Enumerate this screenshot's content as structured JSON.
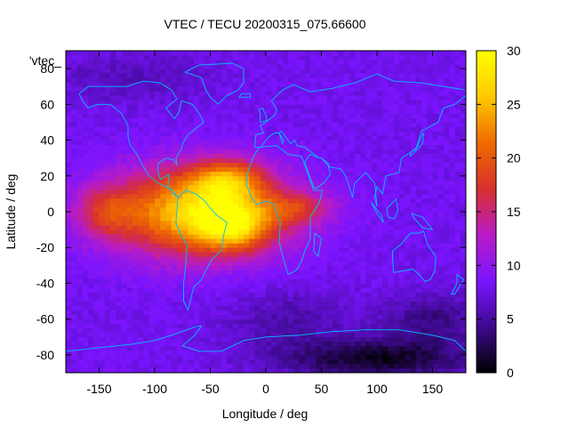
{
  "chart_data": {
    "type": "heatmap",
    "title": "VTEC / TECU 20200315_075.66600",
    "xlabel": "Longitude / deg",
    "ylabel": "Latitude / deg",
    "xlim": [
      -180,
      180
    ],
    "ylim": [
      -90,
      90
    ],
    "x_ticks": [
      -150,
      -100,
      -50,
      0,
      50,
      100,
      150
    ],
    "y_ticks": [
      -80,
      -60,
      -40,
      -20,
      0,
      20,
      40,
      60,
      80
    ],
    "colorbar": {
      "min": 0,
      "max": 30,
      "ticks": [
        0,
        5,
        10,
        15,
        20,
        25,
        30
      ],
      "palette": [
        "#000000",
        "#3c0a8c",
        "#7a14ff",
        "#b81cc6",
        "#d8302e",
        "#ee6a00",
        "#ffc800",
        "#ffff00"
      ]
    },
    "legend_key": "'vtec_",
    "grid_step_deg": 5,
    "background_tec": 8,
    "features": [
      {
        "name": "main equatorial anomaly",
        "lon": -60,
        "lat": 0,
        "sigma_lon": 55,
        "sigma_lat": 17,
        "peak": 19
      },
      {
        "name": "crest north",
        "lon": -35,
        "lat": 18,
        "sigma_lon": 22,
        "sigma_lat": 8,
        "peak": 10
      },
      {
        "name": "crest south",
        "lon": -30,
        "lat": -8,
        "sigma_lon": 22,
        "sigma_lat": 9,
        "peak": 10
      },
      {
        "name": "east pacific lobe",
        "lon": -145,
        "lat": 0,
        "sigma_lon": 18,
        "sigma_lat": 10,
        "peak": 6
      },
      {
        "name": "atlantic-africa tail",
        "lon": 30,
        "lat": 2,
        "sigma_lon": 22,
        "sigma_lat": 6,
        "peak": 6
      },
      {
        "name": "antarctic depletion",
        "lon": 100,
        "lat": -82,
        "sigma_lon": 60,
        "sigma_lat": 8,
        "peak": -7
      },
      {
        "name": "south indian depletion",
        "lon": 150,
        "lat": -60,
        "sigma_lon": 30,
        "sigma_lat": 10,
        "peak": -4
      },
      {
        "name": "south atlantic depletion",
        "lon": 20,
        "lat": -60,
        "sigma_lon": 40,
        "sigma_lat": 12,
        "peak": -2.5
      },
      {
        "name": "north atlantic darkening",
        "lon": -120,
        "lat": 75,
        "sigma_lon": 50,
        "sigma_lat": 10,
        "peak": -2
      }
    ],
    "coastlines": [
      {
        "name": "north-america",
        "points": [
          [
            -168,
            66
          ],
          [
            -160,
            70
          ],
          [
            -140,
            70
          ],
          [
            -125,
            70
          ],
          [
            -110,
            73
          ],
          [
            -95,
            72
          ],
          [
            -85,
            68
          ],
          [
            -80,
            63
          ],
          [
            -90,
            58
          ],
          [
            -82,
            52
          ],
          [
            -78,
            56
          ],
          [
            -76,
            62
          ],
          [
            -66,
            60
          ],
          [
            -60,
            55
          ],
          [
            -56,
            50
          ],
          [
            -64,
            46
          ],
          [
            -70,
            43
          ],
          [
            -75,
            38
          ],
          [
            -76,
            35
          ],
          [
            -81,
            30
          ],
          [
            -80,
            26
          ],
          [
            -83,
            29
          ],
          [
            -90,
            30
          ],
          [
            -97,
            27
          ],
          [
            -97,
            22
          ],
          [
            -95,
            18
          ],
          [
            -87,
            21
          ],
          [
            -88,
            15
          ],
          [
            -83,
            10
          ],
          [
            -79,
            8
          ],
          [
            -85,
            12
          ],
          [
            -90,
            14
          ],
          [
            -97,
            16
          ],
          [
            -105,
            20
          ],
          [
            -110,
            25
          ],
          [
            -115,
            31
          ],
          [
            -118,
            34
          ],
          [
            -122,
            37
          ],
          [
            -124,
            42
          ],
          [
            -124,
            48
          ],
          [
            -130,
            55
          ],
          [
            -140,
            60
          ],
          [
            -152,
            60
          ],
          [
            -160,
            58
          ],
          [
            -165,
            62
          ],
          [
            -168,
            66
          ]
        ]
      },
      {
        "name": "greenland",
        "points": [
          [
            -73,
            78
          ],
          [
            -60,
            82
          ],
          [
            -30,
            83
          ],
          [
            -20,
            80
          ],
          [
            -20,
            72
          ],
          [
            -25,
            68
          ],
          [
            -35,
            65
          ],
          [
            -43,
            60
          ],
          [
            -50,
            64
          ],
          [
            -54,
            68
          ],
          [
            -58,
            75
          ],
          [
            -73,
            78
          ]
        ]
      },
      {
        "name": "south-america",
        "points": [
          [
            -79,
            8
          ],
          [
            -72,
            12
          ],
          [
            -63,
            10
          ],
          [
            -55,
            6
          ],
          [
            -50,
            2
          ],
          [
            -44,
            -2
          ],
          [
            -35,
            -6
          ],
          [
            -38,
            -13
          ],
          [
            -40,
            -22
          ],
          [
            -48,
            -26
          ],
          [
            -55,
            -34
          ],
          [
            -58,
            -38
          ],
          [
            -65,
            -42
          ],
          [
            -68,
            -50
          ],
          [
            -70,
            -55
          ],
          [
            -74,
            -50
          ],
          [
            -74,
            -40
          ],
          [
            -72,
            -30
          ],
          [
            -71,
            -18
          ],
          [
            -76,
            -14
          ],
          [
            -81,
            -6
          ],
          [
            -80,
            0
          ],
          [
            -79,
            8
          ]
        ]
      },
      {
        "name": "africa",
        "points": [
          [
            -6,
            36
          ],
          [
            10,
            37
          ],
          [
            20,
            32
          ],
          [
            32,
            31
          ],
          [
            34,
            28
          ],
          [
            43,
            12
          ],
          [
            51,
            12
          ],
          [
            48,
            5
          ],
          [
            40,
            -3
          ],
          [
            40,
            -15
          ],
          [
            35,
            -22
          ],
          [
            32,
            -28
          ],
          [
            27,
            -33
          ],
          [
            20,
            -35
          ],
          [
            17,
            -29
          ],
          [
            12,
            -17
          ],
          [
            13,
            -6
          ],
          [
            9,
            0
          ],
          [
            8,
            4
          ],
          [
            0,
            6
          ],
          [
            -8,
            4
          ],
          [
            -13,
            8
          ],
          [
            -17,
            14
          ],
          [
            -17,
            21
          ],
          [
            -13,
            28
          ],
          [
            -10,
            32
          ],
          [
            -6,
            36
          ]
        ]
      },
      {
        "name": "europe-asia",
        "points": [
          [
            -10,
            36
          ],
          [
            -9,
            43
          ],
          [
            -2,
            44
          ],
          [
            -5,
            48
          ],
          [
            2,
            51
          ],
          [
            8,
            54
          ],
          [
            10,
            57
          ],
          [
            5,
            62
          ],
          [
            15,
            68
          ],
          [
            25,
            71
          ],
          [
            40,
            67
          ],
          [
            60,
            69
          ],
          [
            80,
            72
          ],
          [
            100,
            77
          ],
          [
            115,
            73
          ],
          [
            140,
            72
          ],
          [
            160,
            70
          ],
          [
            180,
            68
          ],
          [
            180,
            65
          ],
          [
            170,
            60
          ],
          [
            160,
            58
          ],
          [
            155,
            50
          ],
          [
            140,
            45
          ],
          [
            135,
            35
          ],
          [
            122,
            30
          ],
          [
            120,
            22
          ],
          [
            108,
            20
          ],
          [
            105,
            10
          ],
          [
            100,
            14
          ],
          [
            98,
            8
          ],
          [
            100,
            3
          ],
          [
            98,
            16
          ],
          [
            95,
            18
          ],
          [
            90,
            22
          ],
          [
            80,
            16
          ],
          [
            78,
            8
          ],
          [
            72,
            20
          ],
          [
            67,
            24
          ],
          [
            57,
            25
          ],
          [
            56,
            27
          ],
          [
            50,
            30
          ],
          [
            48,
            30
          ],
          [
            35,
            36
          ],
          [
            28,
            37
          ],
          [
            26,
            40
          ],
          [
            22,
            38
          ],
          [
            20,
            40
          ],
          [
            14,
            45
          ],
          [
            12,
            44
          ],
          [
            16,
            40
          ],
          [
            15,
            38
          ],
          [
            12,
            44
          ],
          [
            8,
            44
          ],
          [
            3,
            42
          ],
          [
            -5,
            36
          ],
          [
            -10,
            36
          ]
        ]
      },
      {
        "name": "arabia",
        "points": [
          [
            35,
            28
          ],
          [
            38,
            22
          ],
          [
            43,
            14
          ],
          [
            45,
            13
          ],
          [
            52,
            16
          ],
          [
            58,
            21
          ],
          [
            56,
            26
          ],
          [
            50,
            30
          ],
          [
            48,
            30
          ],
          [
            40,
            32
          ],
          [
            35,
            28
          ]
        ]
      },
      {
        "name": "australia",
        "points": [
          [
            114,
            -22
          ],
          [
            122,
            -18
          ],
          [
            130,
            -12
          ],
          [
            137,
            -12
          ],
          [
            142,
            -11
          ],
          [
            146,
            -19
          ],
          [
            153,
            -25
          ],
          [
            152,
            -33
          ],
          [
            148,
            -38
          ],
          [
            143,
            -39
          ],
          [
            138,
            -35
          ],
          [
            132,
            -32
          ],
          [
            124,
            -33
          ],
          [
            115,
            -34
          ],
          [
            114,
            -26
          ],
          [
            114,
            -22
          ]
        ]
      },
      {
        "name": "antarctica",
        "points": [
          [
            -180,
            -78
          ],
          [
            -150,
            -76
          ],
          [
            -120,
            -74
          ],
          [
            -100,
            -72
          ],
          [
            -80,
            -68
          ],
          [
            -62,
            -64
          ],
          [
            -58,
            -64
          ],
          [
            -64,
            -69
          ],
          [
            -75,
            -75
          ],
          [
            -60,
            -78
          ],
          [
            -40,
            -78
          ],
          [
            -20,
            -72
          ],
          [
            0,
            -70
          ],
          [
            30,
            -69
          ],
          [
            60,
            -67
          ],
          [
            90,
            -66
          ],
          [
            120,
            -66
          ],
          [
            150,
            -69
          ],
          [
            170,
            -72
          ],
          [
            180,
            -78
          ]
        ]
      },
      {
        "name": "madagascar",
        "points": [
          [
            44,
            -12
          ],
          [
            50,
            -15
          ],
          [
            47,
            -25
          ],
          [
            43,
            -22
          ],
          [
            44,
            -12
          ]
        ]
      },
      {
        "name": "new-zealand",
        "points": [
          [
            172,
            -35
          ],
          [
            178,
            -38
          ],
          [
            174,
            -42
          ],
          [
            170,
            -46
          ],
          [
            167,
            -46
          ],
          [
            172,
            -40
          ],
          [
            172,
            -35
          ]
        ]
      },
      {
        "name": "japan",
        "points": [
          [
            130,
            31
          ],
          [
            135,
            34
          ],
          [
            141,
            38
          ],
          [
            142,
            44
          ],
          [
            140,
            42
          ],
          [
            136,
            36
          ],
          [
            130,
            33
          ],
          [
            130,
            31
          ]
        ]
      },
      {
        "name": "borneo",
        "points": [
          [
            109,
            2
          ],
          [
            117,
            7
          ],
          [
            119,
            1
          ],
          [
            116,
            -4
          ],
          [
            110,
            -3
          ],
          [
            109,
            2
          ]
        ]
      },
      {
        "name": "sumatra",
        "points": [
          [
            95,
            5
          ],
          [
            104,
            -2
          ],
          [
            106,
            -6
          ],
          [
            100,
            -1
          ],
          [
            95,
            5
          ]
        ]
      },
      {
        "name": "new-guinea",
        "points": [
          [
            131,
            -1
          ],
          [
            141,
            -3
          ],
          [
            150,
            -10
          ],
          [
            141,
            -9
          ],
          [
            134,
            -4
          ],
          [
            131,
            -1
          ]
        ]
      },
      {
        "name": "great-britain",
        "points": [
          [
            -5,
            50
          ],
          [
            1,
            51
          ],
          [
            0,
            54
          ],
          [
            -3,
            58
          ],
          [
            -6,
            57
          ],
          [
            -5,
            54
          ],
          [
            -5,
            50
          ]
        ]
      },
      {
        "name": "iceland",
        "points": [
          [
            -24,
            64
          ],
          [
            -14,
            64
          ],
          [
            -14,
            66
          ],
          [
            -22,
            66
          ],
          [
            -24,
            64
          ]
        ]
      }
    ]
  }
}
